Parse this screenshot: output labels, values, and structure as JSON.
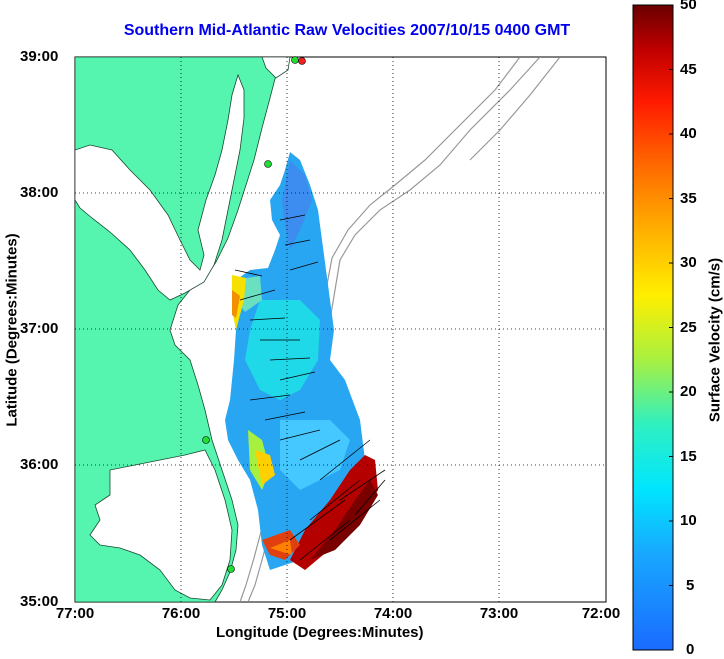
{
  "title": "Southern Mid-Atlantic Raw Velocities 2007/10/15 0400 GMT",
  "axes": {
    "xlabel": "Longitude (Degrees:Minutes)",
    "ylabel": "Latitude (Degrees:Minutes)",
    "xticks": [
      "77:00",
      "76:00",
      "75:00",
      "74:00",
      "73:00",
      "72:00"
    ],
    "yticks": [
      "39:00",
      "38:00",
      "37:00",
      "36:00",
      "35:00"
    ]
  },
  "colorbar": {
    "label": "Surface Velocity (cm/s)",
    "ticks": [
      "50",
      "45",
      "40",
      "35",
      "30",
      "25",
      "20",
      "15",
      "10",
      "5",
      "0"
    ],
    "min": 0,
    "max": 50
  },
  "colors": {
    "title": "#0000ee",
    "land": "#55f5b0",
    "water": "#ffffff",
    "bathymetry": "#999999"
  }
}
